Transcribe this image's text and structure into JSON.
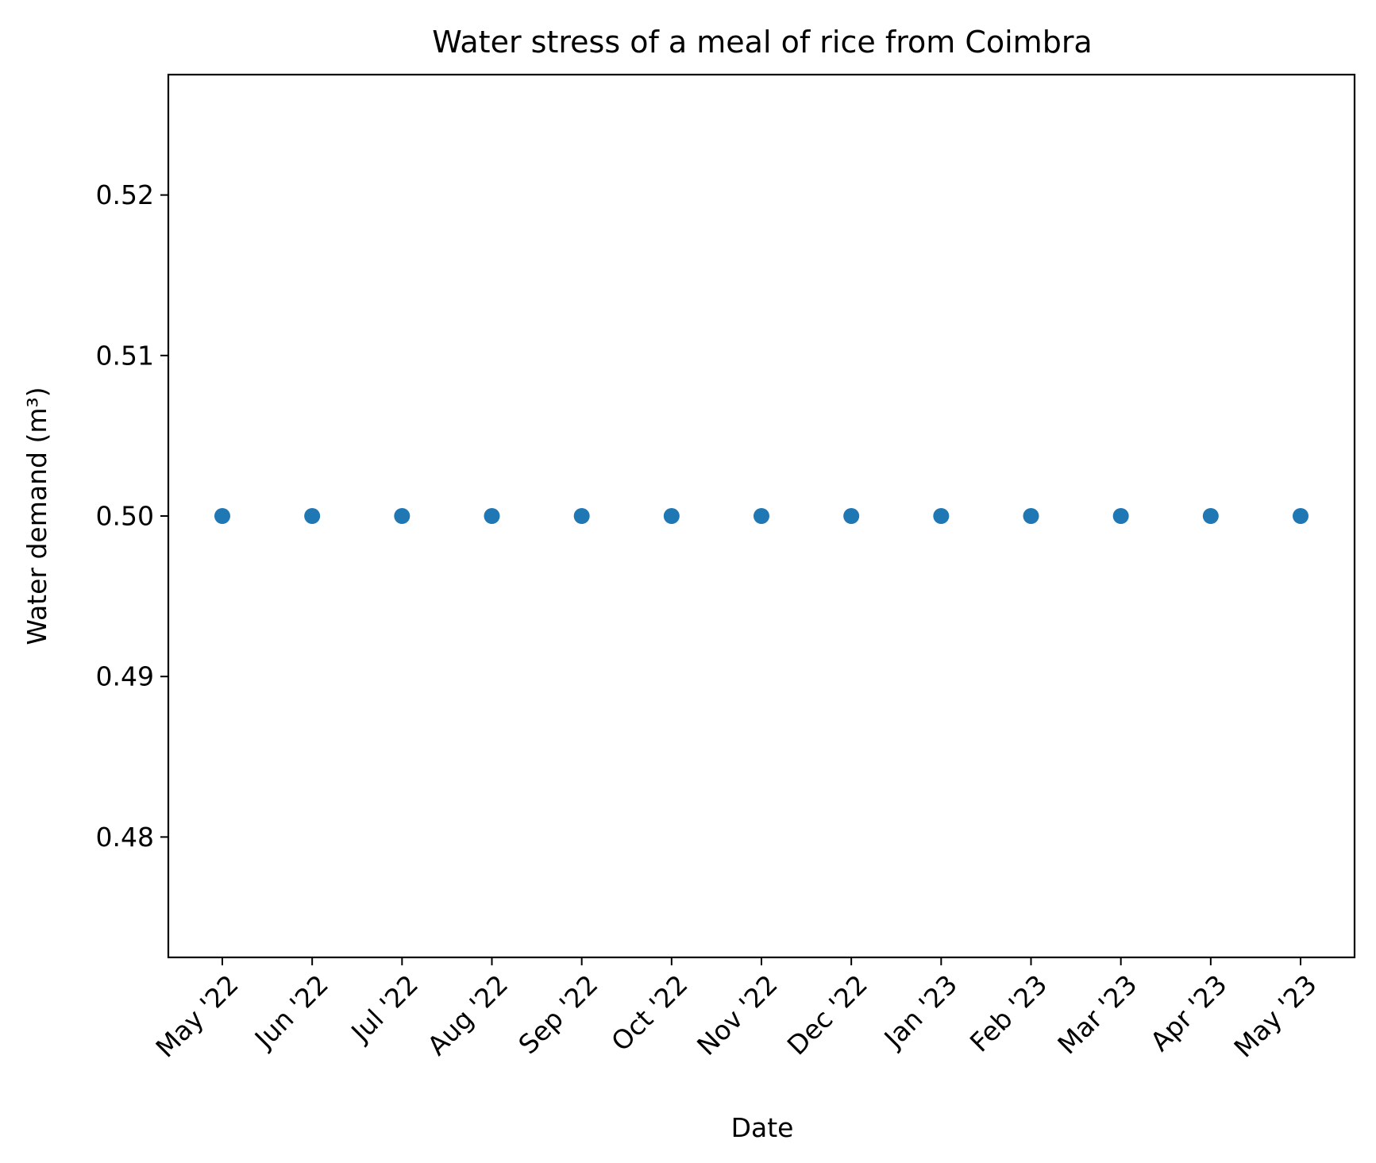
{
  "chart_data": {
    "type": "scatter",
    "title": "Water stress of a meal of rice from Coimbra",
    "xlabel": "Date",
    "ylabel": "Water demand (m³)",
    "x": [
      "May '22",
      "Jun '22",
      "Jul '22",
      "Aug '22",
      "Sep '22",
      "Oct '22",
      "Nov '22",
      "Dec '22",
      "Jan '23",
      "Feb '23",
      "Mar '23",
      "Apr '23",
      "May '23"
    ],
    "y": [
      0.5,
      0.5,
      0.5,
      0.5,
      0.5,
      0.5,
      0.5,
      0.5,
      0.5,
      0.5,
      0.5,
      0.5,
      0.5
    ],
    "ylim": [
      0.4725,
      0.5275
    ],
    "yticks": [
      0.48,
      0.49,
      0.5,
      0.51,
      0.52
    ],
    "ytick_labels": [
      "0.48",
      "0.49",
      "0.50",
      "0.51",
      "0.52"
    ],
    "grid": false,
    "marker_color": "#1f77b4"
  }
}
